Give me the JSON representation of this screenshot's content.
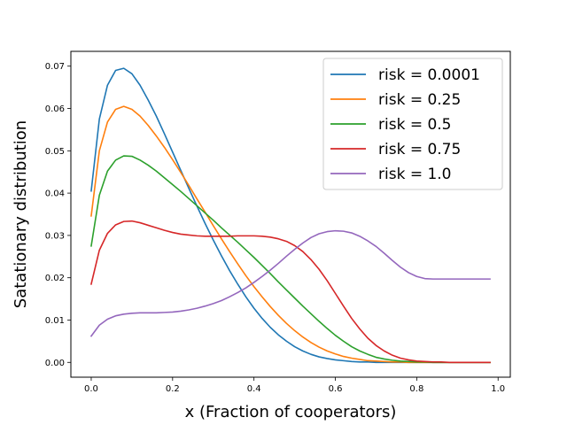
{
  "chart_data": {
    "type": "line",
    "title": "",
    "xlabel": "x (Fraction of cooperators)",
    "ylabel": "Satationary distribution",
    "xlim": [
      -0.05,
      1.03
    ],
    "ylim": [
      -0.0035,
      0.0735
    ],
    "xticks": [
      "0.0",
      "0.2",
      "0.4",
      "0.6",
      "0.8",
      "1.0"
    ],
    "xtick_values": [
      0.0,
      0.2,
      0.4,
      0.6,
      0.8,
      1.0
    ],
    "yticks": [
      "0.00",
      "0.01",
      "0.02",
      "0.03",
      "0.04",
      "0.05",
      "0.06",
      "0.07"
    ],
    "ytick_values": [
      0.0,
      0.01,
      0.02,
      0.03,
      0.04,
      0.05,
      0.06,
      0.07
    ],
    "grid": false,
    "legend_position": "top-right",
    "x": [
      0.0,
      0.02,
      0.04,
      0.06,
      0.08,
      0.1,
      0.12,
      0.14,
      0.16,
      0.18,
      0.2,
      0.22,
      0.24,
      0.26,
      0.28,
      0.3,
      0.32,
      0.34,
      0.36,
      0.38,
      0.4,
      0.42,
      0.44,
      0.46,
      0.48,
      0.5,
      0.52,
      0.54,
      0.56,
      0.58,
      0.6,
      0.62,
      0.64,
      0.66,
      0.68,
      0.7,
      0.72,
      0.74,
      0.76,
      0.78,
      0.8,
      0.82,
      0.84,
      0.86,
      0.88,
      0.9,
      0.92,
      0.94,
      0.96,
      0.98
    ],
    "series": [
      {
        "name": "risk = 0.0001",
        "color": "#1f77b4",
        "values": [
          0.0405,
          0.0575,
          0.0655,
          0.069,
          0.0695,
          0.0682,
          0.0655,
          0.062,
          0.0582,
          0.054,
          0.0497,
          0.0454,
          0.0411,
          0.0369,
          0.0328,
          0.0289,
          0.0252,
          0.0217,
          0.0185,
          0.0155,
          0.0128,
          0.0104,
          0.0083,
          0.0065,
          0.005,
          0.0037,
          0.0027,
          0.0019,
          0.0013,
          0.0009,
          0.0006,
          0.0004,
          0.0002,
          0.0001,
          0.0001,
          0.0,
          0.0,
          0.0,
          0.0,
          0.0,
          0.0,
          0.0,
          0.0,
          0.0,
          0.0,
          0.0,
          0.0,
          0.0,
          0.0,
          0.0
        ]
      },
      {
        "name": "risk = 0.25",
        "color": "#ff7f0e",
        "values": [
          0.0346,
          0.05,
          0.0568,
          0.0598,
          0.0605,
          0.0598,
          0.0582,
          0.056,
          0.0535,
          0.0508,
          0.0479,
          0.0449,
          0.0418,
          0.0386,
          0.0355,
          0.0323,
          0.0292,
          0.0262,
          0.0233,
          0.0205,
          0.0179,
          0.0155,
          0.0132,
          0.0111,
          0.0092,
          0.0075,
          0.006,
          0.0047,
          0.0036,
          0.0027,
          0.002,
          0.0014,
          0.001,
          0.0007,
          0.0004,
          0.0003,
          0.0002,
          0.0001,
          0.0001,
          0.0,
          0.0,
          0.0,
          0.0,
          0.0,
          0.0,
          0.0,
          0.0,
          0.0,
          0.0,
          0.0
        ]
      },
      {
        "name": "risk = 0.5",
        "color": "#2ca02c",
        "values": [
          0.0275,
          0.0395,
          0.0452,
          0.0478,
          0.0488,
          0.0487,
          0.0478,
          0.0466,
          0.0452,
          0.0436,
          0.042,
          0.0404,
          0.0387,
          0.037,
          0.0353,
          0.0336,
          0.0318,
          0.0301,
          0.0284,
          0.0266,
          0.0248,
          0.0229,
          0.021,
          0.019,
          0.0171,
          0.0152,
          0.0133,
          0.0115,
          0.0097,
          0.008,
          0.0064,
          0.005,
          0.0037,
          0.0027,
          0.0019,
          0.0012,
          0.0008,
          0.0005,
          0.0003,
          0.0002,
          0.0001,
          0.0001,
          0.0,
          0.0,
          0.0,
          0.0,
          0.0,
          0.0,
          0.0,
          0.0
        ]
      },
      {
        "name": "risk = 0.75",
        "color": "#d62728",
        "values": [
          0.0185,
          0.0265,
          0.0305,
          0.0325,
          0.0333,
          0.0334,
          0.033,
          0.0324,
          0.0318,
          0.0312,
          0.0307,
          0.0303,
          0.0301,
          0.0299,
          0.0298,
          0.0298,
          0.0298,
          0.0298,
          0.0299,
          0.0299,
          0.0299,
          0.0298,
          0.0296,
          0.0292,
          0.0286,
          0.0276,
          0.0262,
          0.0243,
          0.022,
          0.0193,
          0.0163,
          0.0133,
          0.0104,
          0.0079,
          0.0057,
          0.004,
          0.0027,
          0.0017,
          0.001,
          0.0006,
          0.0003,
          0.0002,
          0.0001,
          0.0001,
          0.0,
          0.0,
          0.0,
          0.0,
          0.0,
          0.0
        ]
      },
      {
        "name": "risk = 1.0",
        "color": "#9467bd",
        "values": [
          0.0062,
          0.0088,
          0.0102,
          0.011,
          0.0114,
          0.0116,
          0.0117,
          0.0117,
          0.0117,
          0.0118,
          0.0119,
          0.0121,
          0.0124,
          0.0128,
          0.0133,
          0.0139,
          0.0146,
          0.0155,
          0.0165,
          0.0176,
          0.0189,
          0.0203,
          0.0218,
          0.0234,
          0.0251,
          0.0267,
          0.0282,
          0.0295,
          0.0304,
          0.0309,
          0.0311,
          0.031,
          0.0306,
          0.0298,
          0.0287,
          0.0274,
          0.0258,
          0.0241,
          0.0225,
          0.0212,
          0.0203,
          0.0198,
          0.0197,
          0.0197,
          0.0197,
          0.0197,
          0.0197,
          0.0197,
          0.0197,
          0.0197
        ]
      }
    ]
  }
}
